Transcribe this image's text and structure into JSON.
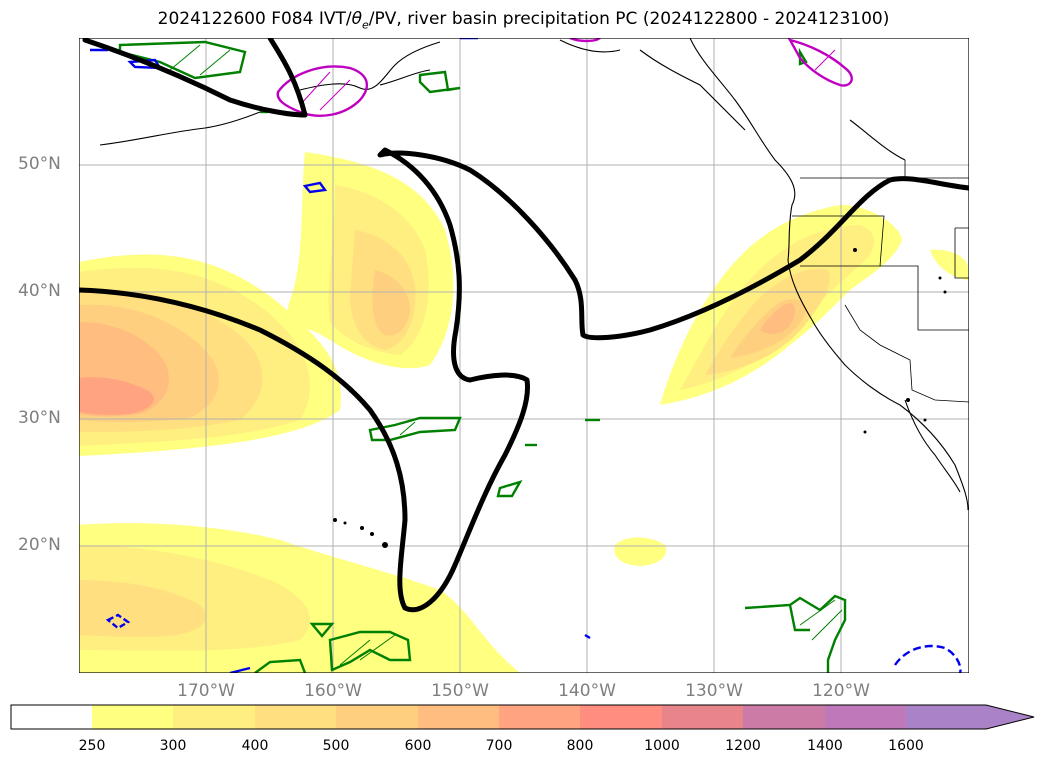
{
  "title": {
    "prefix": "2024122600 F084 IVT/",
    "theta": "θ",
    "theta_sub": "e",
    "suffix": "/PV, river basin precipitation PC (2024122800 - 2024123100)"
  },
  "map": {
    "lat_labels": [
      "50°N",
      "40°N",
      "30°N",
      "20°N"
    ],
    "lon_labels": [
      "170°W",
      "160°W",
      "150°W",
      "140°W",
      "130°W",
      "120°W"
    ]
  },
  "colorbar": {
    "levels": [
      "250",
      "300",
      "400",
      "500",
      "600",
      "700",
      "800",
      "1000",
      "1200",
      "1400",
      "1600"
    ],
    "colors": [
      "#ffffff",
      "#ffff80",
      "#ffef80",
      "#ffdf80",
      "#ffcf80",
      "#ffbe80",
      "#ffa380",
      "#ff8e80",
      "#e8858a",
      "#cb7ba6",
      "#bf78ba",
      "#a982c8"
    ]
  }
}
